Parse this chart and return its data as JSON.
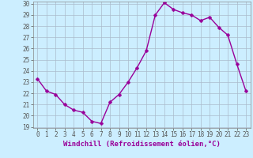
{
  "x_values": [
    0,
    1,
    2,
    3,
    4,
    5,
    6,
    7,
    8,
    9,
    10,
    11,
    12,
    13,
    14,
    15,
    16,
    17,
    18,
    19,
    20,
    21,
    22,
    23
  ],
  "y_values": [
    23.3,
    22.2,
    21.9,
    21.0,
    20.5,
    20.3,
    19.5,
    19.3,
    21.2,
    21.9,
    23.0,
    24.3,
    25.8,
    29.0,
    30.1,
    29.5,
    29.2,
    29.0,
    28.5,
    28.8,
    27.9,
    27.2,
    24.6,
    22.2
  ],
  "line_color": "#990099",
  "marker": "P",
  "marker_size": 2.5,
  "bg_color": "#cceeff",
  "grid_color": "#aabbcc",
  "xlabel": "Windchill (Refroidissement éolien,°C)",
  "ylim": [
    19,
    30
  ],
  "xlim": [
    -0.5,
    23.5
  ],
  "yticks": [
    19,
    20,
    21,
    22,
    23,
    24,
    25,
    26,
    27,
    28,
    29,
    30
  ],
  "xticks": [
    0,
    1,
    2,
    3,
    4,
    5,
    6,
    7,
    8,
    9,
    10,
    11,
    12,
    13,
    14,
    15,
    16,
    17,
    18,
    19,
    20,
    21,
    22,
    23
  ],
  "tick_fontsize": 5.5,
  "xlabel_fontsize": 6.5,
  "line_width": 1.0
}
